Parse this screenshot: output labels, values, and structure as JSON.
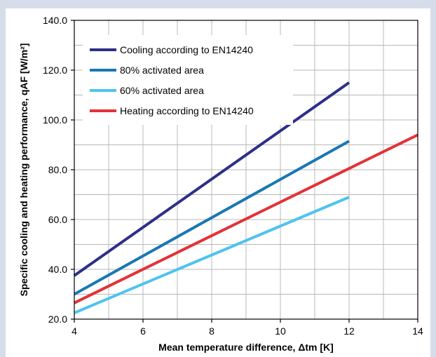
{
  "chart_data": {
    "type": "line",
    "xlabel": "Mean temperature difference, Δtm [K]",
    "ylabel": "Specific cooling and heating performance, qAF [W/m²]",
    "xlim": [
      4,
      14
    ],
    "ylim": [
      20,
      140
    ],
    "x_ticks": [
      4,
      6,
      8,
      10,
      12,
      14
    ],
    "y_ticks": [
      "20.0",
      "40.0",
      "60.0",
      "80.0",
      "100.0",
      "120.0",
      "140.0"
    ],
    "grid": true,
    "legend_position": "top-left",
    "series": [
      {
        "name": "Cooling according to EN14240",
        "color": "#2e2f86",
        "x": [
          4,
          12
        ],
        "y": [
          37.5,
          115
        ]
      },
      {
        "name": "80% activated area",
        "color": "#1a77b5",
        "x": [
          4,
          12
        ],
        "y": [
          30,
          91.5
        ]
      },
      {
        "name": "60% activated area",
        "color": "#4ec3ef",
        "x": [
          4,
          12
        ],
        "y": [
          22.5,
          69
        ]
      },
      {
        "name": "Heating according to EN14240",
        "color": "#e43137",
        "x": [
          4,
          14
        ],
        "y": [
          26.5,
          94
        ]
      }
    ]
  }
}
